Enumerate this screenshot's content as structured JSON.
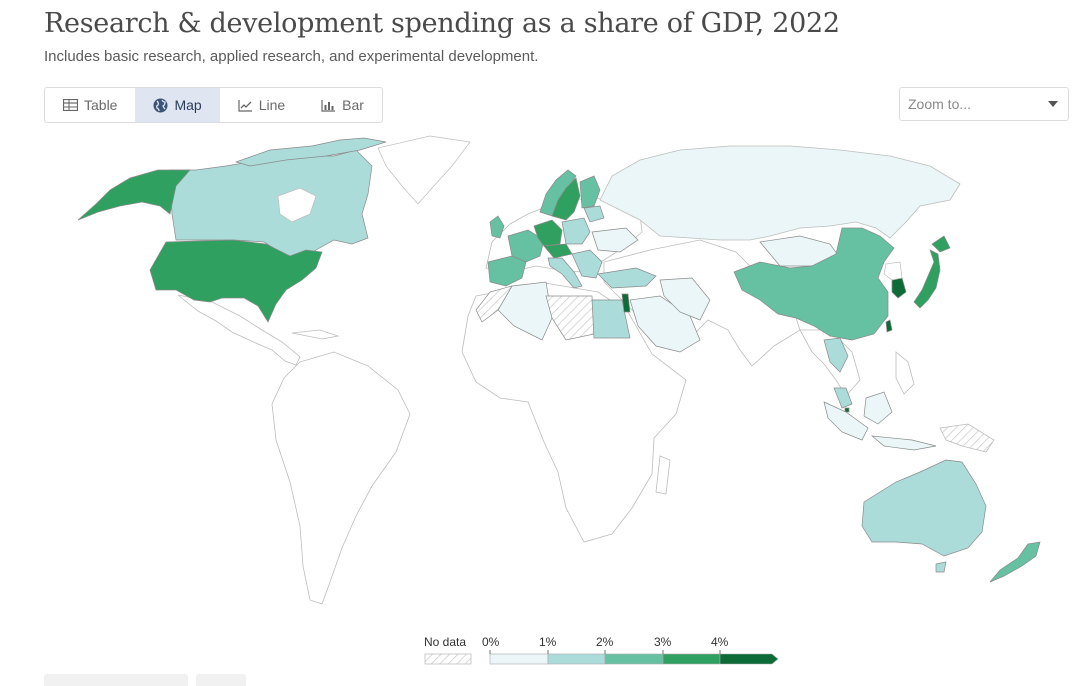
{
  "header": {
    "title": "Research & development spending as a share of GDP, 2022",
    "subtitle": "Includes basic research, applied research, and experimental development."
  },
  "tabs": [
    {
      "label": "Table",
      "icon": "table-icon",
      "active": false
    },
    {
      "label": "Map",
      "icon": "globe-icon",
      "active": true
    },
    {
      "label": "Line",
      "icon": "line-chart-icon",
      "active": false
    },
    {
      "label": "Bar",
      "icon": "bar-chart-icon",
      "active": false
    }
  ],
  "zoom": {
    "placeholder": "Zoom to...",
    "icon": "chevron-down-icon"
  },
  "colors": {
    "bin0": "#eaf6f7",
    "bin1": "#abdcda",
    "bin2": "#66c1a3",
    "bin3": "#2fa060",
    "bin4": "#0c6b37",
    "nodata_hatch": "#cfcfcf",
    "border": "#bdbdbd",
    "base": "#ffffff"
  },
  "chart_data": {
    "type": "choropleth",
    "title": "Research & development spending as a share of GDP, 2022",
    "subtitle": "Includes basic research, applied research, and experimental development.",
    "unit": "% of GDP",
    "legend": {
      "no_data_label": "No data",
      "bins": [
        0,
        1,
        2,
        3,
        4
      ],
      "bin_labels": [
        "0%",
        "1%",
        "2%",
        "3%",
        "4%"
      ]
    },
    "regions": [
      {
        "name": "United States",
        "bin": 3
      },
      {
        "name": "Alaska (United States)",
        "bin": 3
      },
      {
        "name": "Canada",
        "bin": 1
      },
      {
        "name": "Greenland",
        "bin": 1
      },
      {
        "name": "China",
        "bin": 2
      },
      {
        "name": "Japan",
        "bin": 3
      },
      {
        "name": "South Korea",
        "bin": 4
      },
      {
        "name": "Australia",
        "bin": 1
      },
      {
        "name": "New Zealand",
        "bin": 2
      },
      {
        "name": "Egypt",
        "bin": 1
      },
      {
        "name": "Israel",
        "bin": 4
      },
      {
        "name": "Sweden",
        "bin": 3
      },
      {
        "name": "Germany",
        "bin": 3
      },
      {
        "name": "Austria",
        "bin": 3
      },
      {
        "name": "France",
        "bin": 2
      },
      {
        "name": "Spain",
        "bin": 2
      },
      {
        "name": "Italy",
        "bin": 1
      },
      {
        "name": "Russia",
        "bin": 0
      },
      {
        "name": "Mongolia",
        "bin": 0
      },
      {
        "name": "Thailand",
        "bin": 1
      },
      {
        "name": "Malaysia",
        "bin": 1
      },
      {
        "name": "Indonesia",
        "bin": 0
      },
      {
        "name": "Saudi Arabia",
        "bin": 0
      },
      {
        "name": "Algeria",
        "bin": 0
      },
      {
        "name": "Libya",
        "bin": null
      },
      {
        "name": "Western Sahara",
        "bin": null
      },
      {
        "name": "Papua New Guinea",
        "bin": null
      }
    ]
  }
}
